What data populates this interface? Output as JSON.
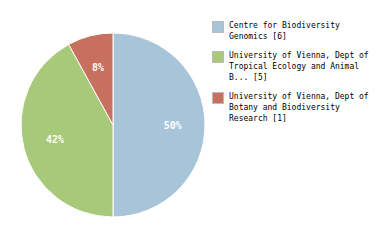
{
  "chart_data": {
    "type": "pie",
    "categories": [
      "Centre for Biodiversity\nGenomics [6]",
      "University of Vienna, Dept of\nTropical Ecology and Animal\nB... [5]",
      "University of Vienna, Dept of\nBotany and Biodiversity\nResearch [1]"
    ],
    "values": [
      50,
      42,
      8
    ],
    "value_labels": [
      "50%",
      "42%",
      "8%"
    ],
    "colors": [
      "#a8c4d8",
      "#a8c87a",
      "#c87060"
    ],
    "data_labels": true,
    "legend": "right"
  }
}
